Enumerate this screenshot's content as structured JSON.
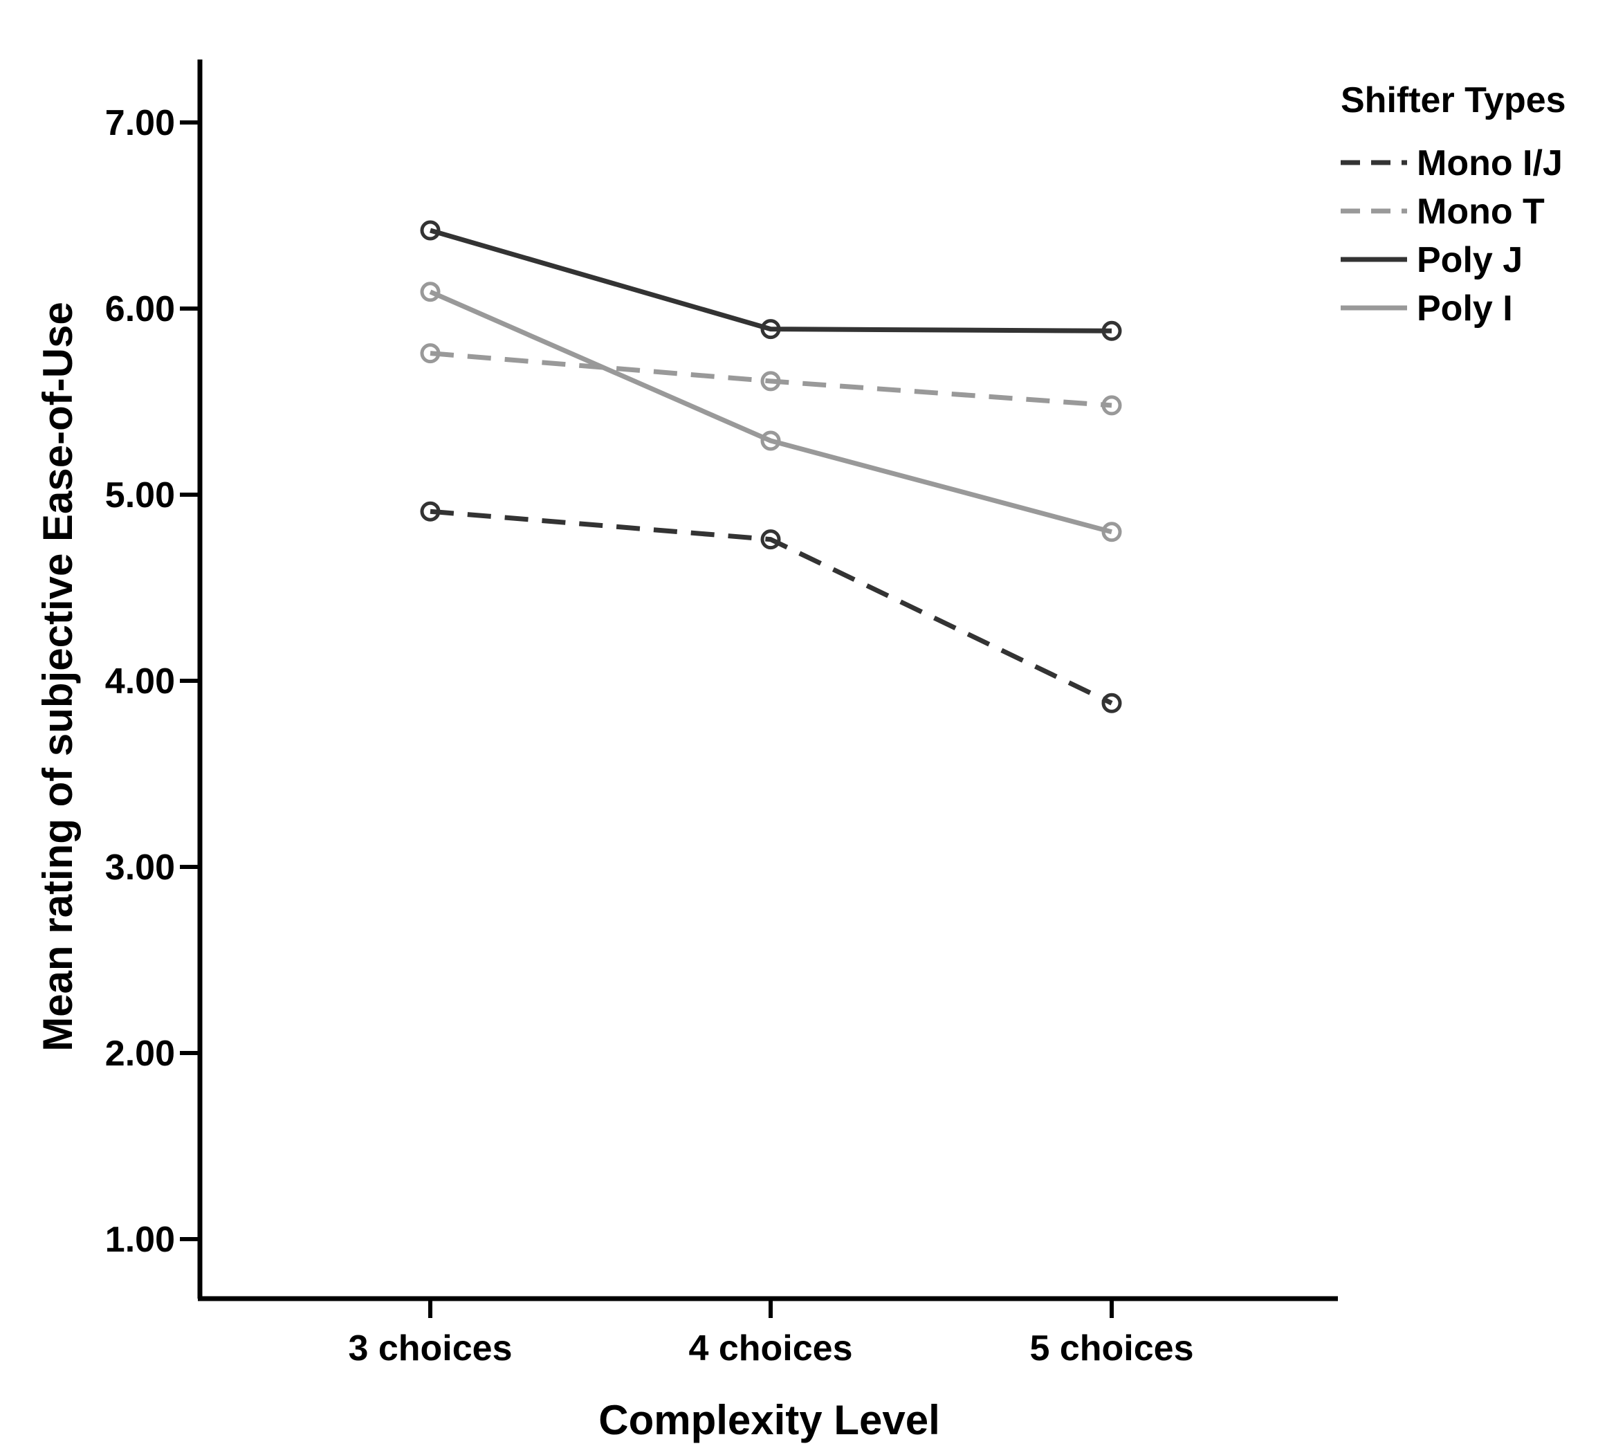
{
  "chart_data": {
    "type": "line",
    "title": "",
    "xlabel": "Complexity Level",
    "ylabel": "Mean rating of subjective Ease-of-Use",
    "categories": [
      "3 choices",
      "4 choices",
      "5 choices"
    ],
    "ylim": [
      0.6,
      7.25
    ],
    "yticks": [
      1.0,
      2.0,
      3.0,
      4.0,
      5.0,
      6.0,
      7.0
    ],
    "ytick_labels": [
      "1.00",
      "2.00",
      "3.00",
      "4.00",
      "5.00",
      "6.00",
      "7.00"
    ],
    "grid": false,
    "legend_title": "Shifter Types",
    "legend_position": "top-right",
    "series": [
      {
        "name": "Mono I/J",
        "values": [
          4.91,
          4.76,
          3.88
        ],
        "color": "#333333",
        "line_style": "dashed",
        "marker": "open-circle"
      },
      {
        "name": "Mono T",
        "values": [
          5.76,
          5.61,
          5.48
        ],
        "color": "#999999",
        "line_style": "dashed",
        "marker": "open-circle"
      },
      {
        "name": "Poly J",
        "values": [
          6.42,
          5.89,
          5.88
        ],
        "color": "#333333",
        "line_style": "solid",
        "marker": "open-circle"
      },
      {
        "name": "Poly I",
        "values": [
          6.09,
          5.29,
          4.8
        ],
        "color": "#999999",
        "line_style": "solid",
        "marker": "open-circle"
      }
    ]
  }
}
